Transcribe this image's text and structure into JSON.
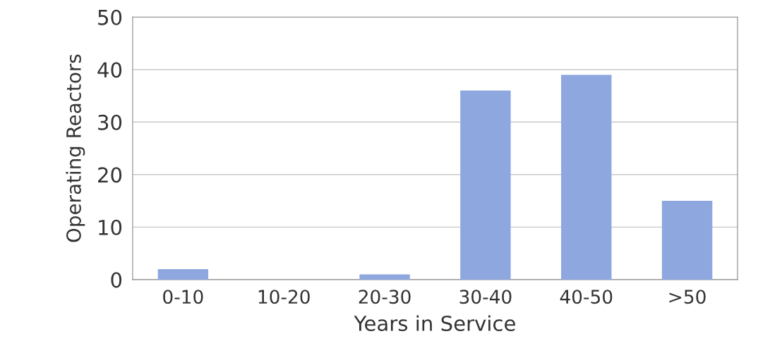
{
  "chart_data": {
    "type": "bar",
    "xlabel": "Years in Service",
    "ylabel": "Operating Reactors",
    "categories": [
      "0-10",
      "10-20",
      "20-30",
      "30-40",
      "40-50",
      ">50"
    ],
    "values": [
      2,
      0,
      1,
      36,
      39,
      15
    ],
    "color": "#8ea7df",
    "ylim": [
      0,
      50
    ],
    "yticks": [
      0,
      10,
      20,
      30,
      40,
      50
    ],
    "grid": "y"
  }
}
